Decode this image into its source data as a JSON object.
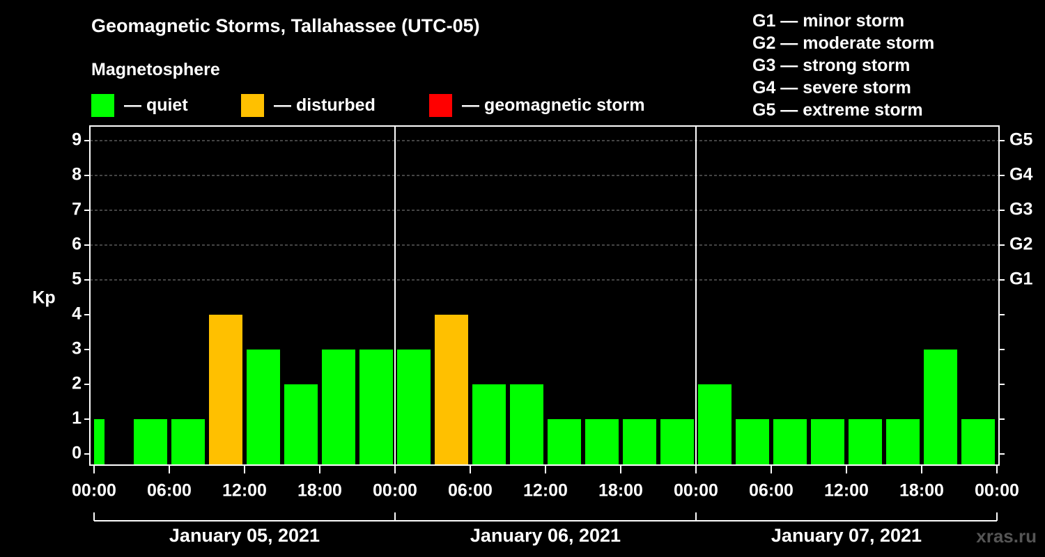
{
  "header": {
    "title": "Geomagnetic Storms, Tallahassee (UTC-05)",
    "legend_heading": "Magnetosphere"
  },
  "legend": [
    {
      "label": "— quiet",
      "color": "#00ff00"
    },
    {
      "label": "— disturbed",
      "color": "#ffc000"
    },
    {
      "label": "— geomagnetic storm",
      "color": "#ff0000"
    }
  ],
  "g_scale": [
    {
      "text": "G1 — minor storm"
    },
    {
      "text": "G2 — moderate storm"
    },
    {
      "text": "G3 — strong storm"
    },
    {
      "text": "G4 — severe storm"
    },
    {
      "text": "G5 — extreme storm"
    }
  ],
  "watermark": "xras.ru",
  "colors": {
    "quiet": "#00ff00",
    "disturbed": "#ffc000",
    "storm": "#ff0000"
  },
  "chart_data": {
    "type": "bar",
    "ylabel": "Kp",
    "ylim": [
      0,
      9
    ],
    "yticks": [
      "0",
      "1",
      "2",
      "3",
      "4",
      "5",
      "6",
      "7",
      "8",
      "9"
    ],
    "right_axis_labels": [
      {
        "kp": 5,
        "label": "G1"
      },
      {
        "kp": 6,
        "label": "G2"
      },
      {
        "kp": 7,
        "label": "G3"
      },
      {
        "kp": 8,
        "label": "G4"
      },
      {
        "kp": 9,
        "label": "G5"
      }
    ],
    "x_tick_labels": [
      "00:00",
      "06:00",
      "12:00",
      "18:00",
      "00:00",
      "06:00",
      "12:00",
      "18:00",
      "00:00",
      "06:00",
      "12:00",
      "18:00",
      "00:00"
    ],
    "days": [
      "January 05, 2021",
      "January 06, 2021",
      "January 07, 2021"
    ],
    "grid": "dashed horizontal at Kp 5-9",
    "bars": [
      {
        "kp": 1,
        "level": "quiet"
      },
      {
        "kp": 1,
        "level": "quiet"
      },
      {
        "kp": 1,
        "level": "quiet"
      },
      {
        "kp": 4,
        "level": "disturbed"
      },
      {
        "kp": 3,
        "level": "quiet"
      },
      {
        "kp": 2,
        "level": "quiet"
      },
      {
        "kp": 3,
        "level": "quiet"
      },
      {
        "kp": 3,
        "level": "quiet"
      },
      {
        "kp": 3,
        "level": "quiet"
      },
      {
        "kp": 4,
        "level": "disturbed"
      },
      {
        "kp": 2,
        "level": "quiet"
      },
      {
        "kp": 2,
        "level": "quiet"
      },
      {
        "kp": 1,
        "level": "quiet"
      },
      {
        "kp": 1,
        "level": "quiet"
      },
      {
        "kp": 1,
        "level": "quiet"
      },
      {
        "kp": 1,
        "level": "quiet"
      },
      {
        "kp": 2,
        "level": "quiet"
      },
      {
        "kp": 1,
        "level": "quiet"
      },
      {
        "kp": 1,
        "level": "quiet"
      },
      {
        "kp": 1,
        "level": "quiet"
      },
      {
        "kp": 1,
        "level": "quiet"
      },
      {
        "kp": 1,
        "level": "quiet"
      },
      {
        "kp": 3,
        "level": "quiet"
      },
      {
        "kp": 1,
        "level": "quiet"
      }
    ]
  }
}
